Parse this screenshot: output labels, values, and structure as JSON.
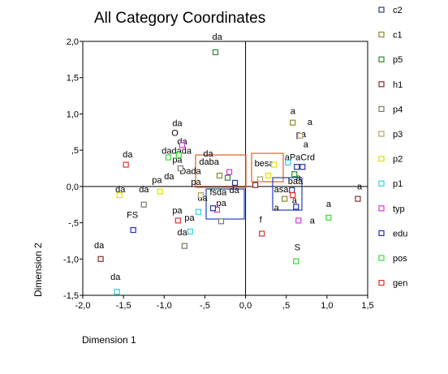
{
  "chart_data": {
    "type": "scatter",
    "title": "All Category Coordinates",
    "xlabel": "Dimension 1",
    "ylabel": "Dimension 2",
    "xlim": [
      -2.0,
      1.5
    ],
    "ylim": [
      -1.5,
      2.0
    ],
    "x_ticks": [
      "-2,0",
      "-1,5",
      "-1,0",
      "-,5",
      "0,0",
      ",5",
      "1,0",
      "1,5"
    ],
    "x_tick_values": [
      -2.0,
      -1.5,
      -1.0,
      -0.5,
      0.0,
      0.5,
      1.0,
      1.5
    ],
    "y_ticks": [
      "2,0",
      "1,5",
      "1,0",
      ",5",
      "0,0",
      "-,5",
      "-1,0",
      "-1,5"
    ],
    "y_tick_values": [
      2.0,
      1.5,
      1.0,
      0.5,
      0.0,
      -0.5,
      -1.0,
      -1.5
    ],
    "reference_lines": {
      "x": 0,
      "y": 0
    },
    "legend_position": "right",
    "series": [
      {
        "name": "c2",
        "color": "#2a3a8c",
        "points": [
          {
            "x": 0.63,
            "y": 0.27
          },
          {
            "x": -0.13,
            "y": 0.05
          },
          {
            "x": 0.57,
            "y": -0.05
          }
        ]
      },
      {
        "name": "c1",
        "color": "#8a8a2a",
        "points": [
          {
            "x": 0.58,
            "y": 0.88
          },
          {
            "x": -0.32,
            "y": 0.15
          },
          {
            "x": 0.48,
            "y": -0.17
          }
        ]
      },
      {
        "name": "p5",
        "color": "#2a8a2a",
        "points": [
          {
            "x": -0.37,
            "y": 1.85
          },
          {
            "x": -0.22,
            "y": 0.12
          },
          {
            "x": 0.6,
            "y": 0.17
          }
        ]
      },
      {
        "name": "h1",
        "color": "#8a2a2a",
        "points": [
          {
            "x": -1.78,
            "y": -1.0
          },
          {
            "x": 1.38,
            "y": -0.17
          },
          {
            "x": 0.12,
            "y": 0.02
          }
        ]
      },
      {
        "name": "p4",
        "color": "#7a7a6a",
        "points": [
          {
            "x": -1.25,
            "y": -0.25
          },
          {
            "x": -0.75,
            "y": -0.82
          },
          {
            "x": -0.3,
            "y": -0.48
          },
          {
            "x": -0.8,
            "y": 0.25
          }
        ]
      },
      {
        "name": "p3",
        "color": "#b0a070",
        "points": [
          {
            "x": 0.67,
            "y": 0.7
          },
          {
            "x": -0.55,
            "y": -0.12
          },
          {
            "x": 0.18,
            "y": 0.1
          }
        ]
      },
      {
        "name": "p2",
        "color": "#e0e000",
        "points": [
          {
            "x": -1.55,
            "y": -0.12
          },
          {
            "x": -1.05,
            "y": -0.07
          },
          {
            "x": 0.28,
            "y": 0.15
          },
          {
            "x": 0.35,
            "y": 0.3
          }
        ]
      },
      {
        "name": "p1",
        "color": "#30d0e0",
        "points": [
          {
            "x": -1.58,
            "y": -1.45
          },
          {
            "x": -0.68,
            "y": -0.62
          },
          {
            "x": -0.58,
            "y": -0.35
          },
          {
            "x": 0.52,
            "y": 0.33
          }
        ]
      },
      {
        "name": "typ",
        "color": "#e030e0",
        "points": [
          {
            "x": -0.78,
            "y": 0.57
          },
          {
            "x": 0.65,
            "y": -0.47
          },
          {
            "x": -0.35,
            "y": -0.32
          },
          {
            "x": -0.2,
            "y": 0.2
          }
        ]
      },
      {
        "name": "edu",
        "color": "#2030c0",
        "points": [
          {
            "x": -1.38,
            "y": -0.6
          },
          {
            "x": -0.4,
            "y": -0.3
          },
          {
            "x": 0.7,
            "y": 0.27
          },
          {
            "x": 0.62,
            "y": -0.28
          }
        ]
      },
      {
        "name": "pos",
        "color": "#30e030",
        "points": [
          {
            "x": 0.62,
            "y": -1.03
          },
          {
            "x": 1.02,
            "y": -0.43
          },
          {
            "x": -0.95,
            "y": 0.4
          },
          {
            "x": -0.82,
            "y": 0.43
          }
        ]
      },
      {
        "name": "gen",
        "color": "#e03030",
        "points": [
          {
            "x": -1.47,
            "y": 0.3
          },
          {
            "x": 0.2,
            "y": -0.65
          },
          {
            "x": -0.83,
            "y": -0.47
          },
          {
            "x": 0.58,
            "y": -0.12
          }
        ]
      }
    ],
    "annotations": [
      {
        "text": "da",
        "x": -0.41,
        "y": 2.02
      },
      {
        "text": "a",
        "x": 0.55,
        "y": 1.0
      },
      {
        "text": "a",
        "x": 0.76,
        "y": 0.85
      },
      {
        "text": "da",
        "x": -0.9,
        "y": 0.83
      },
      {
        "text": "O",
        "x": -0.91,
        "y": 0.7
      },
      {
        "text": "pa",
        "x": 0.62,
        "y": 0.68
      },
      {
        "text": "da",
        "x": -0.84,
        "y": 0.58
      },
      {
        "text": "dadada",
        "x": -1.03,
        "y": 0.45
      },
      {
        "text": "a",
        "x": 0.71,
        "y": 0.54
      },
      {
        "text": "da",
        "x": -1.51,
        "y": 0.4
      },
      {
        "text": "da",
        "x": -0.52,
        "y": 0.41
      },
      {
        "text": "aPaCrd",
        "x": 0.48,
        "y": 0.36
      },
      {
        "text": "pa",
        "x": -0.9,
        "y": 0.33
      },
      {
        "text": "daba",
        "x": -0.57,
        "y": 0.3
      },
      {
        "text": "besa",
        "x": 0.11,
        "y": 0.28
      },
      {
        "text": "Dada",
        "x": -0.81,
        "y": 0.17
      },
      {
        "text": "pa",
        "x": -1.15,
        "y": 0.05
      },
      {
        "text": "da",
        "x": -1.0,
        "y": 0.1
      },
      {
        "text": "a",
        "x": 0.62,
        "y": 0.08
      },
      {
        "text": "pa",
        "x": -0.67,
        "y": 0.02
      },
      {
        "text": "baa",
        "x": 0.52,
        "y": 0.03
      },
      {
        "text": "da",
        "x": -1.6,
        "y": -0.08
      },
      {
        "text": "da",
        "x": -1.31,
        "y": -0.08
      },
      {
        "text": "a",
        "x": 1.37,
        "y": -0.04
      },
      {
        "text": "da",
        "x": -0.2,
        "y": -0.09
      },
      {
        "text": "asa",
        "x": 0.35,
        "y": -0.08
      },
      {
        "text": "fsda",
        "x": -0.44,
        "y": -0.12
      },
      {
        "text": "da",
        "x": -0.59,
        "y": -0.2
      },
      {
        "text": "a",
        "x": 0.57,
        "y": -0.23
      },
      {
        "text": "pa",
        "x": -0.36,
        "y": -0.27
      },
      {
        "text": "a",
        "x": 0.99,
        "y": -0.28
      },
      {
        "text": "pa",
        "x": -0.9,
        "y": -0.37
      },
      {
        "text": "FS",
        "x": -1.46,
        "y": -0.43
      },
      {
        "text": "pa",
        "x": -0.75,
        "y": -0.47
      },
      {
        "text": "a",
        "x": 0.35,
        "y": -0.33
      },
      {
        "text": "f",
        "x": 0.17,
        "y": -0.5
      },
      {
        "text": "a",
        "x": 0.79,
        "y": -0.51
      },
      {
        "text": "da",
        "x": -0.84,
        "y": -0.67
      },
      {
        "text": "S",
        "x": 0.6,
        "y": -0.88
      },
      {
        "text": "da",
        "x": -1.86,
        "y": -0.85
      },
      {
        "text": "da",
        "x": -1.66,
        "y": -1.29
      }
    ]
  },
  "legend": {
    "items": [
      {
        "name": "c2",
        "color": "#2a3a8c"
      },
      {
        "name": "c1",
        "color": "#8a8a2a"
      },
      {
        "name": "p5",
        "color": "#2a8a2a"
      },
      {
        "name": "h1",
        "color": "#8a2a2a"
      },
      {
        "name": "p4",
        "color": "#7a7a6a"
      },
      {
        "name": "p3",
        "color": "#b0a070"
      },
      {
        "name": "p2",
        "color": "#e0e000"
      },
      {
        "name": "p1",
        "color": "#30d0e0"
      },
      {
        "name": "typ",
        "color": "#e030e0"
      },
      {
        "name": "edu",
        "color": "#2030c0"
      },
      {
        "name": "pos",
        "color": "#30e030"
      },
      {
        "name": "gen",
        "color": "#e03030"
      }
    ]
  }
}
